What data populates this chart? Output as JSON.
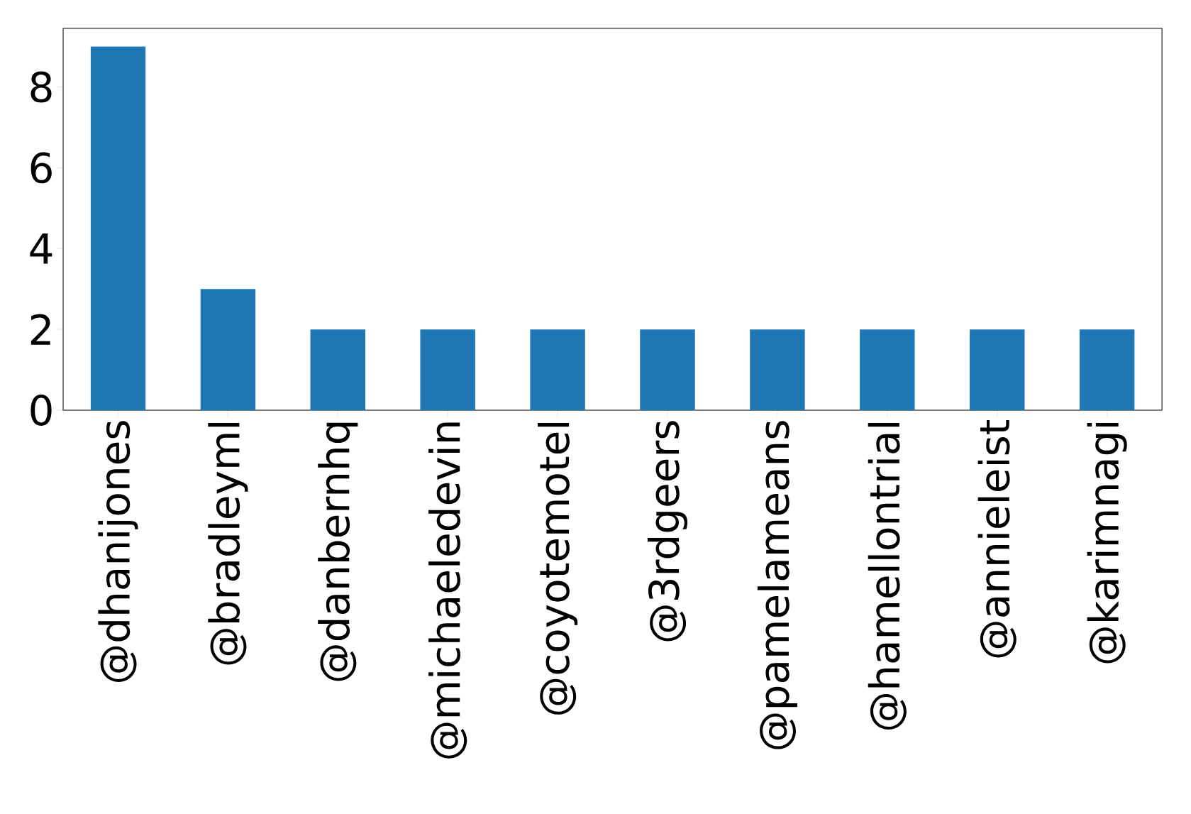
{
  "chart_data": {
    "type": "bar",
    "categories": [
      "@dhanijones",
      "@bradleyml",
      "@danbernhq",
      "@michaeledevin",
      "@coyotemotel",
      "@3rdgeers",
      "@pamelameans",
      "@hamellontrial",
      "@annieleist",
      "@karimnagi"
    ],
    "values": [
      9,
      3,
      2,
      2,
      2,
      2,
      2,
      2,
      2,
      2
    ],
    "color": "#1f77b4",
    "ylim": [
      0,
      9.45
    ],
    "yticks": [
      0,
      2,
      4,
      6,
      8
    ]
  }
}
